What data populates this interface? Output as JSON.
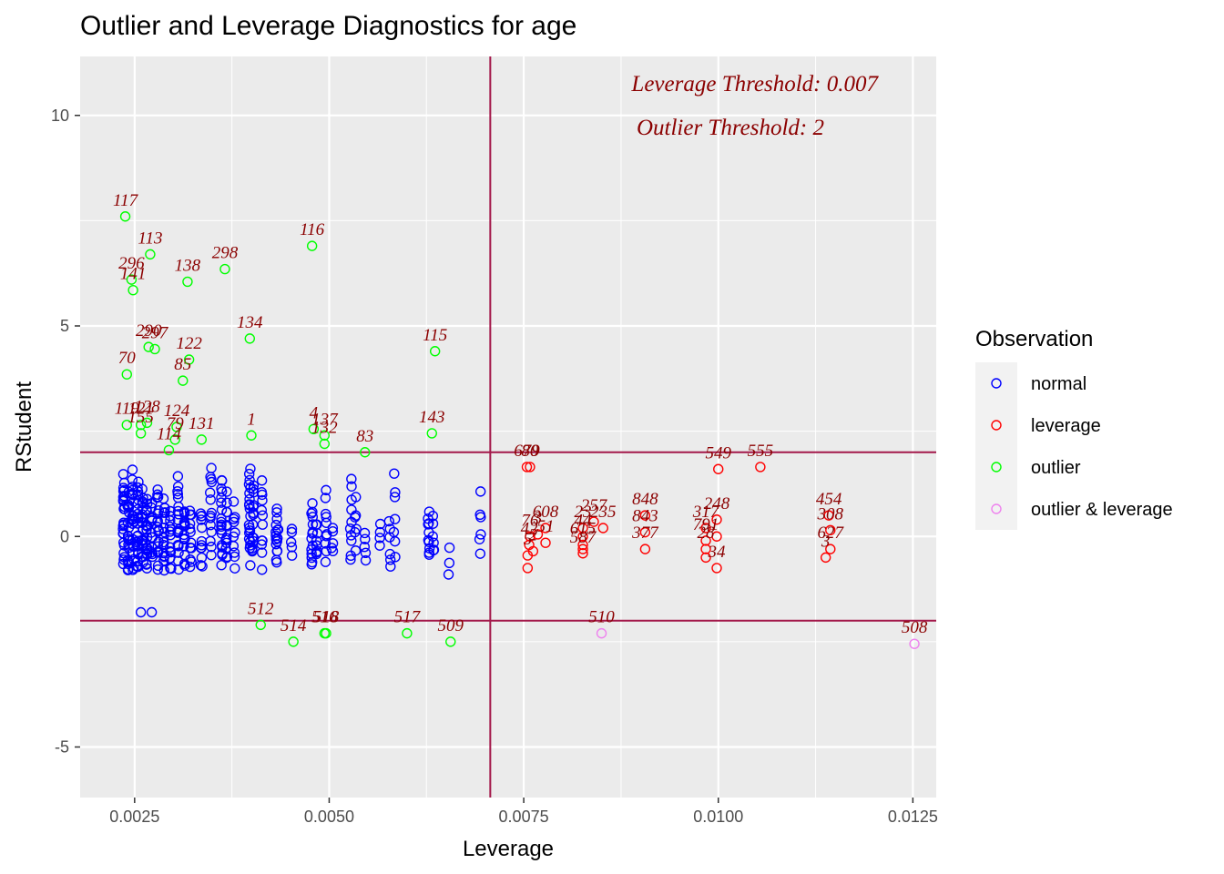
{
  "chart_data": {
    "type": "scatter",
    "title": "Outlier and Leverage Diagnostics for age",
    "xlabel": "Leverage",
    "ylabel": "RStudent",
    "xlim": [
      0.0018,
      0.0128
    ],
    "ylim": [
      -6.2,
      11.4
    ],
    "x_ticks": [
      0.0025,
      0.005,
      0.0075,
      0.01,
      0.0125
    ],
    "x_tick_labels": [
      "0.0025",
      "0.0050",
      "0.0075",
      "0.0100",
      "0.0125"
    ],
    "y_ticks": [
      -5,
      0,
      5,
      10
    ],
    "y_tick_labels": [
      "-5",
      "0",
      "5",
      "10"
    ],
    "grid": true,
    "legend_position": "right",
    "legend": {
      "title": "Observation",
      "entries": [
        {
          "label": "normal",
          "color": "#0000FF"
        },
        {
          "label": "leverage",
          "color": "#FF0000"
        },
        {
          "label": "outlier",
          "color": "#00FF00"
        },
        {
          "label": "outlier & leverage",
          "color": "#EE82EE"
        }
      ]
    },
    "threshold_color": "#A3184A",
    "annotations": [
      "Leverage Threshold: 0.007",
      "Outlier Threshold: 2"
    ],
    "thresholds": {
      "leverage": 0.00707,
      "outlier_upper": 2,
      "outlier_lower": -2
    },
    "normal_columns": [
      {
        "x": 0.00236,
        "ymin": -0.8,
        "ymax": 1.75,
        "n": 24
      },
      {
        "x": 0.00242,
        "ymin": -1.05,
        "ymax": 1.2,
        "n": 20
      },
      {
        "x": 0.00248,
        "ymin": -0.9,
        "ymax": 1.8,
        "n": 22
      },
      {
        "x": 0.00254,
        "ymin": -1.0,
        "ymax": 1.4,
        "n": 22
      },
      {
        "x": 0.0026,
        "ymin": -0.85,
        "ymax": 1.3,
        "n": 20
      },
      {
        "x": 0.00266,
        "ymin": -1.0,
        "ymax": 1.1,
        "n": 18
      },
      {
        "x": 0.00272,
        "ymin": -0.7,
        "ymax": 0.9,
        "n": 14
      },
      {
        "x": 0.0028,
        "ymin": -0.95,
        "ymax": 1.35,
        "n": 18
      },
      {
        "x": 0.00288,
        "ymin": -0.9,
        "ymax": 1.05,
        "n": 16
      },
      {
        "x": 0.00296,
        "ymin": -1.0,
        "ymax": 0.95,
        "n": 14
      },
      {
        "x": 0.00306,
        "ymin": -0.95,
        "ymax": 1.7,
        "n": 18
      },
      {
        "x": 0.00314,
        "ymin": -0.8,
        "ymax": 0.9,
        "n": 14
      },
      {
        "x": 0.00322,
        "ymin": -0.85,
        "ymax": 0.85,
        "n": 12
      },
      {
        "x": 0.00336,
        "ymin": -0.8,
        "ymax": 0.75,
        "n": 12
      },
      {
        "x": 0.00348,
        "ymin": -0.7,
        "ymax": 1.85,
        "n": 14
      },
      {
        "x": 0.00362,
        "ymin": -1.0,
        "ymax": 1.85,
        "n": 18
      },
      {
        "x": 0.00368,
        "ymin": -0.8,
        "ymax": 1.1,
        "n": 12
      },
      {
        "x": 0.00378,
        "ymin": -0.9,
        "ymax": 0.9,
        "n": 10
      },
      {
        "x": 0.00398,
        "ymin": -0.75,
        "ymax": 1.9,
        "n": 20
      },
      {
        "x": 0.00402,
        "ymin": -0.8,
        "ymax": 1.5,
        "n": 14
      },
      {
        "x": 0.00414,
        "ymin": -0.8,
        "ymax": 1.4,
        "n": 12
      },
      {
        "x": 0.00432,
        "ymin": -0.8,
        "ymax": 0.9,
        "n": 10
      },
      {
        "x": 0.00434,
        "ymin": -0.5,
        "ymax": 0.3,
        "n": 6
      },
      {
        "x": 0.00452,
        "ymin": -0.5,
        "ymax": 0.3,
        "n": 5
      },
      {
        "x": 0.00478,
        "ymin": -0.85,
        "ymax": 0.9,
        "n": 14
      },
      {
        "x": 0.00484,
        "ymin": -0.6,
        "ymax": 0.4,
        "n": 8
      },
      {
        "x": 0.00496,
        "ymin": -0.7,
        "ymax": 1.2,
        "n": 10
      },
      {
        "x": 0.00504,
        "ymin": -0.5,
        "ymax": 0.3,
        "n": 5
      },
      {
        "x": 0.00528,
        "ymin": -0.75,
        "ymax": 1.45,
        "n": 10
      },
      {
        "x": 0.00534,
        "ymin": -0.4,
        "ymax": 1.0,
        "n": 6
      },
      {
        "x": 0.00546,
        "ymin": -0.6,
        "ymax": 0.25,
        "n": 5
      },
      {
        "x": 0.00566,
        "ymin": -0.3,
        "ymax": 0.3,
        "n": 4
      },
      {
        "x": 0.00578,
        "ymin": -0.9,
        "ymax": 0.4,
        "n": 6
      },
      {
        "x": 0.00584,
        "ymin": -0.5,
        "ymax": 1.6,
        "n": 7
      },
      {
        "x": 0.00628,
        "ymin": -0.65,
        "ymax": 0.7,
        "n": 10
      },
      {
        "x": 0.00634,
        "ymin": -0.5,
        "ymax": 0.5,
        "n": 6
      },
      {
        "x": 0.00654,
        "ymin": -0.95,
        "ymax": -0.15,
        "n": 3
      },
      {
        "x": 0.00694,
        "ymin": -0.7,
        "ymax": 1.1,
        "n": 6
      }
    ],
    "normal_points": [
      {
        "x": 0.00258,
        "y": -1.8
      },
      {
        "x": 0.00272,
        "y": -1.8
      }
    ],
    "leverage_points": [
      {
        "x": 0.00754,
        "y": 1.65,
        "label": "679"
      },
      {
        "x": 0.00758,
        "y": 1.65,
        "label": "80"
      },
      {
        "x": 0.00755,
        "y": -0.75,
        "label": ""
      },
      {
        "x": 0.00755,
        "y": -0.45,
        "label": "5"
      },
      {
        "x": 0.00757,
        "y": -0.2,
        "label": "42"
      },
      {
        "x": 0.00758,
        "y": 0.0,
        "label": "76"
      },
      {
        "x": 0.00762,
        "y": -0.35,
        "label": "2"
      },
      {
        "x": 0.00768,
        "y": 0.05,
        "label": "3"
      },
      {
        "x": 0.00778,
        "y": 0.2,
        "label": "608"
      },
      {
        "x": 0.00778,
        "y": -0.15,
        "label": "51"
      },
      {
        "x": 0.00826,
        "y": -0.4,
        "label": "587"
      },
      {
        "x": 0.00826,
        "y": -0.3,
        "label": ""
      },
      {
        "x": 0.00826,
        "y": -0.2,
        "label": "615"
      },
      {
        "x": 0.00826,
        "y": 0.0,
        "label": "44"
      },
      {
        "x": 0.00826,
        "y": 0.2,
        "label": "23"
      },
      {
        "x": 0.0084,
        "y": 0.35,
        "label": "257"
      },
      {
        "x": 0.00852,
        "y": 0.2,
        "label": "235"
      },
      {
        "x": 0.00906,
        "y": 0.5,
        "label": "848"
      },
      {
        "x": 0.00906,
        "y": 0.1,
        "label": "843"
      },
      {
        "x": 0.00906,
        "y": -0.3,
        "label": "377"
      },
      {
        "x": 0.00984,
        "y": -0.5,
        "label": ""
      },
      {
        "x": 0.00984,
        "y": -0.3,
        "label": "28"
      },
      {
        "x": 0.00984,
        "y": -0.1,
        "label": "791"
      },
      {
        "x": 0.00984,
        "y": 0.2,
        "label": "317"
      },
      {
        "x": 0.00998,
        "y": 0.4,
        "label": "248"
      },
      {
        "x": 0.00998,
        "y": 0.0,
        "label": ""
      },
      {
        "x": 0.00998,
        "y": -0.75,
        "label": "34"
      },
      {
        "x": 0.01,
        "y": 1.6,
        "label": "549"
      },
      {
        "x": 0.01054,
        "y": 1.65,
        "label": "555"
      },
      {
        "x": 0.01138,
        "y": -0.5,
        "label": "3"
      },
      {
        "x": 0.01142,
        "y": 0.5,
        "label": "454"
      },
      {
        "x": 0.01144,
        "y": 0.15,
        "label": "308"
      },
      {
        "x": 0.01144,
        "y": -0.3,
        "label": "627"
      }
    ],
    "outlier_points": [
      {
        "x": 0.00238,
        "y": 7.6,
        "label": "117"
      },
      {
        "x": 0.0027,
        "y": 6.7,
        "label": "113"
      },
      {
        "x": 0.00246,
        "y": 6.1,
        "label": "296"
      },
      {
        "x": 0.00248,
        "y": 5.85,
        "label": "141"
      },
      {
        "x": 0.00318,
        "y": 6.05,
        "label": "138"
      },
      {
        "x": 0.00366,
        "y": 6.35,
        "label": "298"
      },
      {
        "x": 0.00478,
        "y": 6.9,
        "label": "116"
      },
      {
        "x": 0.00398,
        "y": 4.7,
        "label": "134"
      },
      {
        "x": 0.00636,
        "y": 4.4,
        "label": "115"
      },
      {
        "x": 0.00268,
        "y": 4.5,
        "label": "290"
      },
      {
        "x": 0.00276,
        "y": 4.45,
        "label": "297"
      },
      {
        "x": 0.0032,
        "y": 4.2,
        "label": "122"
      },
      {
        "x": 0.00312,
        "y": 3.7,
        "label": "85"
      },
      {
        "x": 0.0024,
        "y": 3.85,
        "label": "70"
      },
      {
        "x": 0.0024,
        "y": 2.65,
        "label": "119"
      },
      {
        "x": 0.00258,
        "y": 2.65,
        "label": "121"
      },
      {
        "x": 0.00266,
        "y": 2.7,
        "label": "128"
      },
      {
        "x": 0.00258,
        "y": 2.45,
        "label": "155"
      },
      {
        "x": 0.00304,
        "y": 2.6,
        "label": "124"
      },
      {
        "x": 0.00302,
        "y": 2.3,
        "label": "79"
      },
      {
        "x": 0.00294,
        "y": 2.05,
        "label": "114"
      },
      {
        "x": 0.00336,
        "y": 2.3,
        "label": "131"
      },
      {
        "x": 0.004,
        "y": 2.4,
        "label": "1"
      },
      {
        "x": 0.0048,
        "y": 2.55,
        "label": "4"
      },
      {
        "x": 0.00494,
        "y": 2.4,
        "label": "137"
      },
      {
        "x": 0.00494,
        "y": 2.2,
        "label": "132"
      },
      {
        "x": 0.00546,
        "y": 2.0,
        "label": "83"
      },
      {
        "x": 0.00632,
        "y": 2.45,
        "label": "143"
      },
      {
        "x": 0.00412,
        "y": -2.1,
        "label": "512"
      },
      {
        "x": 0.00454,
        "y": -2.5,
        "label": "514"
      },
      {
        "x": 0.00494,
        "y": -2.3,
        "label": "516"
      },
      {
        "x": 0.00496,
        "y": -2.3,
        "label": "518"
      },
      {
        "x": 0.006,
        "y": -2.3,
        "label": "517"
      },
      {
        "x": 0.00656,
        "y": -2.5,
        "label": "509"
      }
    ],
    "outlier_leverage_points": [
      {
        "x": 0.0085,
        "y": -2.3,
        "label": "510"
      },
      {
        "x": 0.01252,
        "y": -2.55,
        "label": "508"
      }
    ]
  }
}
